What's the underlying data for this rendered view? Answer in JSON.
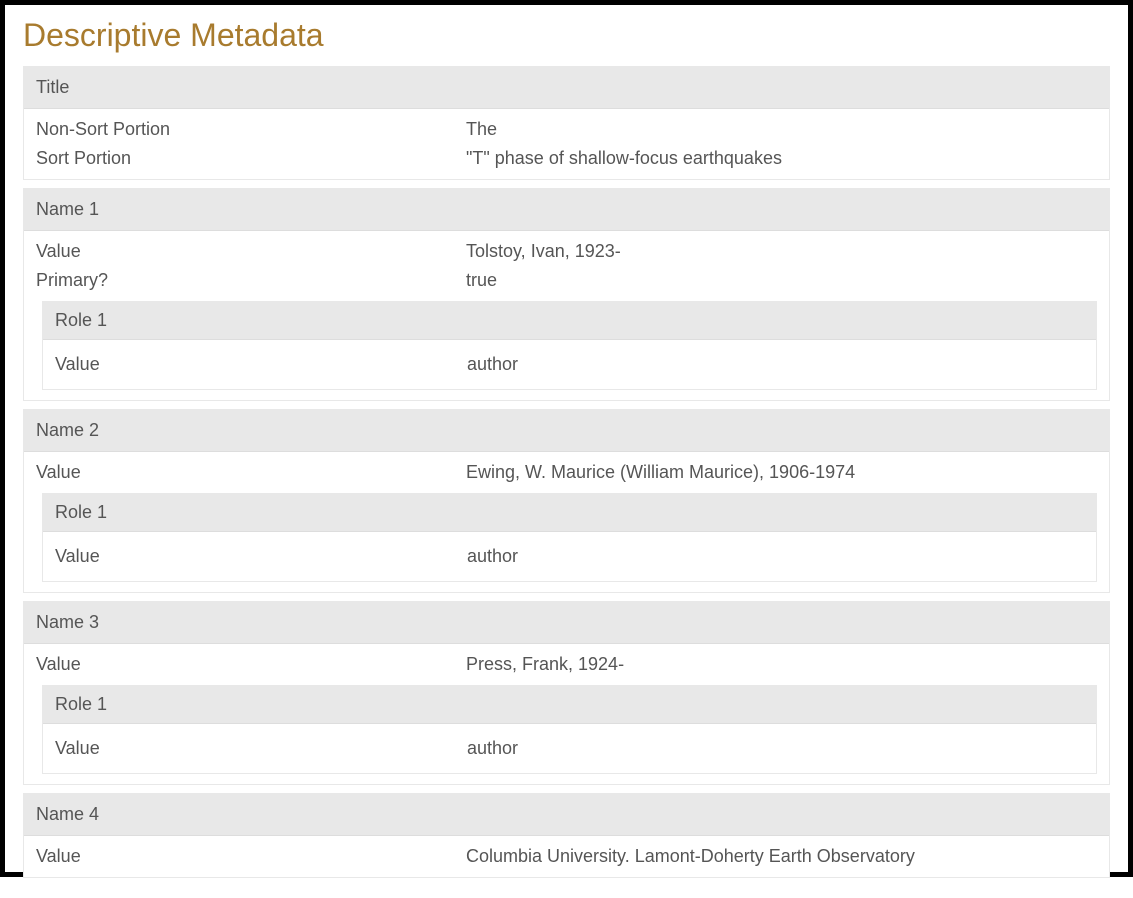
{
  "page": {
    "heading": "Descriptive Metadata"
  },
  "colors": {
    "heading": "#a87b2e",
    "header_bg": "#e8e8e8",
    "text": "#555555",
    "border": "#e8e8e8",
    "body_bg": "#ffffff",
    "frame_border": "#000000"
  },
  "labels": {
    "title": "Title",
    "non_sort_portion": "Non-Sort Portion",
    "sort_portion": "Sort Portion",
    "name1": "Name 1",
    "name2": "Name 2",
    "name3": "Name 3",
    "name4": "Name 4",
    "value": "Value",
    "primary": "Primary?",
    "role1": "Role 1"
  },
  "title_section": {
    "non_sort": "The",
    "sort": "\"T\" phase of shallow-focus earthquakes"
  },
  "names": {
    "n1": {
      "value": "Tolstoy, Ivan, 1923-",
      "primary": "true",
      "role1_value": "author"
    },
    "n2": {
      "value": "Ewing, W. Maurice (William Maurice), 1906-1974",
      "role1_value": "author"
    },
    "n3": {
      "value": "Press, Frank, 1924-",
      "role1_value": "author"
    },
    "n4": {
      "value": "Columbia University. Lamont-Doherty Earth Observatory"
    }
  }
}
